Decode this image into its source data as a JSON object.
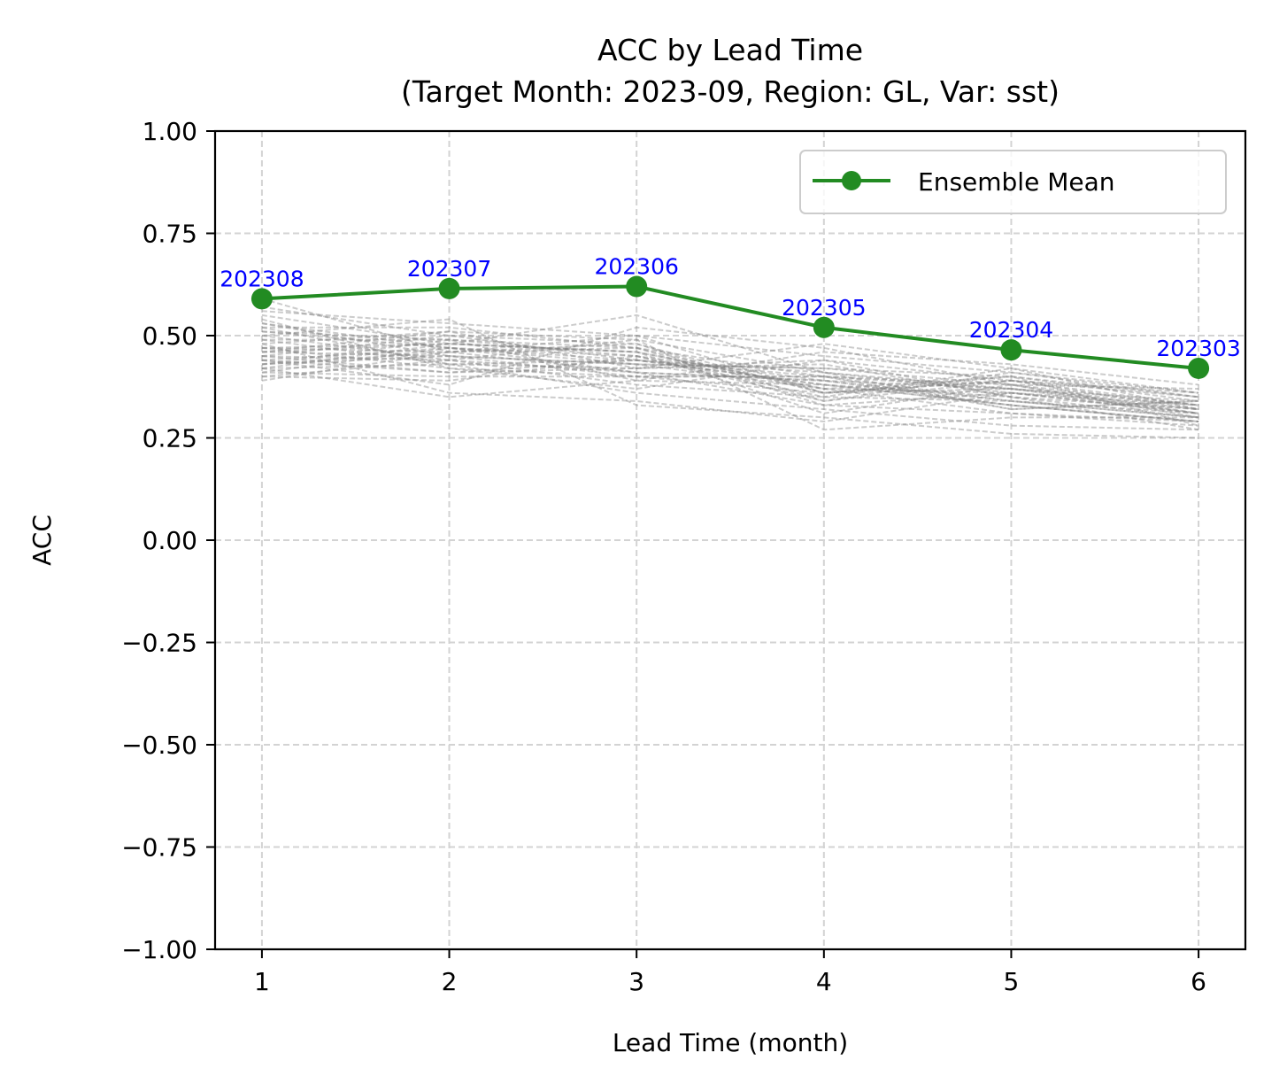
{
  "chart_data": {
    "type": "line",
    "title": "ACC by Lead Time\n(Target Month: 2023-09, Region: GL, Var: sst)",
    "xlabel": "Lead Time (month)",
    "ylabel": "ACC",
    "x": [
      1,
      2,
      3,
      4,
      5,
      6
    ],
    "xlim": [
      0.75,
      6.25
    ],
    "ylim": [
      -1.0,
      1.0
    ],
    "xticks": [
      1,
      2,
      3,
      4,
      5,
      6
    ],
    "yticks": [
      -1.0,
      -0.75,
      -0.5,
      -0.25,
      0.0,
      0.25,
      0.5,
      0.75,
      1.0
    ],
    "ytick_labels": [
      "−1.00",
      "−0.75",
      "−0.50",
      "−0.25",
      "0.00",
      "0.25",
      "0.50",
      "0.75",
      "1.00"
    ],
    "grid": true,
    "legend": {
      "position": "top-right",
      "entries": [
        "Ensemble Mean"
      ]
    },
    "series": [
      {
        "name": "Ensemble Mean",
        "color": "#228b22",
        "marker": "circle",
        "values": [
          0.59,
          0.615,
          0.62,
          0.52,
          0.465,
          0.42
        ],
        "point_labels": [
          "202308",
          "202307",
          "202306",
          "202305",
          "202304",
          "202303"
        ],
        "label_color": "#0000ff"
      }
    ],
    "members": {
      "color": "#808080",
      "style": "dashed",
      "values": [
        [
          0.59,
          0.46,
          0.48,
          0.34,
          0.39,
          0.32
        ],
        [
          0.57,
          0.5,
          0.44,
          0.4,
          0.34,
          0.3
        ],
        [
          0.55,
          0.48,
          0.46,
          0.37,
          0.36,
          0.33
        ],
        [
          0.53,
          0.45,
          0.43,
          0.42,
          0.38,
          0.31
        ],
        [
          0.52,
          0.52,
          0.47,
          0.36,
          0.4,
          0.35
        ],
        [
          0.51,
          0.47,
          0.41,
          0.39,
          0.33,
          0.29
        ],
        [
          0.5,
          0.44,
          0.49,
          0.41,
          0.37,
          0.34
        ],
        [
          0.49,
          0.49,
          0.45,
          0.35,
          0.42,
          0.32
        ],
        [
          0.49,
          0.43,
          0.44,
          0.38,
          0.35,
          0.3
        ],
        [
          0.48,
          0.51,
          0.42,
          0.44,
          0.39,
          0.36
        ],
        [
          0.47,
          0.46,
          0.47,
          0.33,
          0.36,
          0.31
        ],
        [
          0.47,
          0.42,
          0.4,
          0.4,
          0.38,
          0.33
        ],
        [
          0.46,
          0.48,
          0.46,
          0.37,
          0.31,
          0.28
        ],
        [
          0.46,
          0.45,
          0.43,
          0.42,
          0.4,
          0.34
        ],
        [
          0.45,
          0.5,
          0.48,
          0.36,
          0.37,
          0.32
        ],
        [
          0.45,
          0.44,
          0.41,
          0.39,
          0.34,
          0.3
        ],
        [
          0.44,
          0.47,
          0.45,
          0.34,
          0.41,
          0.35
        ],
        [
          0.44,
          0.41,
          0.44,
          0.41,
          0.36,
          0.31
        ],
        [
          0.43,
          0.49,
          0.39,
          0.38,
          0.33,
          0.29
        ],
        [
          0.43,
          0.46,
          0.5,
          0.36,
          0.39,
          0.33
        ],
        [
          0.42,
          0.43,
          0.42,
          0.43,
          0.35,
          0.32
        ],
        [
          0.42,
          0.48,
          0.46,
          0.31,
          0.38,
          0.3
        ],
        [
          0.41,
          0.4,
          0.4,
          0.4,
          0.32,
          0.34
        ],
        [
          0.41,
          0.47,
          0.43,
          0.37,
          0.4,
          0.28
        ],
        [
          0.4,
          0.44,
          0.38,
          0.35,
          0.34,
          0.31
        ],
        [
          0.4,
          0.39,
          0.45,
          0.39,
          0.37,
          0.33
        ],
        [
          0.39,
          0.46,
          0.41,
          0.33,
          0.31,
          0.29
        ],
        [
          0.56,
          0.53,
          0.5,
          0.45,
          0.41,
          0.36
        ],
        [
          0.54,
          0.42,
          0.37,
          0.44,
          0.35,
          0.27
        ],
        [
          0.48,
          0.36,
          0.34,
          0.29,
          0.36,
          0.32
        ],
        [
          0.44,
          0.38,
          0.52,
          0.47,
          0.38,
          0.37
        ],
        [
          0.5,
          0.54,
          0.33,
          0.3,
          0.26,
          0.25
        ],
        [
          0.46,
          0.51,
          0.49,
          0.27,
          0.3,
          0.3
        ],
        [
          0.42,
          0.35,
          0.39,
          0.46,
          0.43,
          0.38
        ],
        [
          0.52,
          0.43,
          0.36,
          0.32,
          0.28,
          0.27
        ],
        [
          0.47,
          0.48,
          0.55,
          0.41,
          0.32,
          0.34
        ],
        [
          0.45,
          0.41,
          0.42,
          0.48,
          0.42,
          0.36
        ],
        [
          0.53,
          0.47,
          0.44,
          0.38,
          0.33,
          0.29
        ],
        [
          0.43,
          0.45,
          0.4,
          0.36,
          0.39,
          0.35
        ],
        [
          0.51,
          0.49,
          0.47,
          0.4,
          0.37,
          0.31
        ]
      ]
    }
  }
}
